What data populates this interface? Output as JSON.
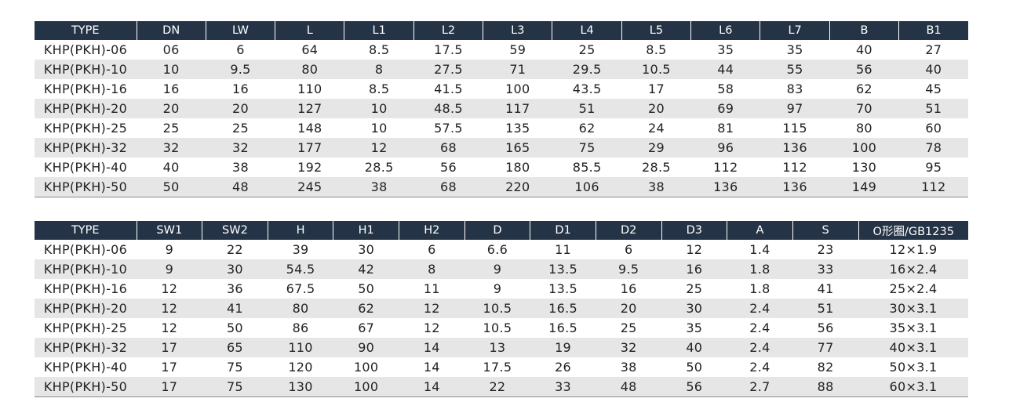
{
  "table1": {
    "headers": [
      "TYPE",
      "DN",
      "LW",
      "L",
      "L1",
      "L2",
      "L3",
      "L4",
      "L5",
      "L6",
      "L7",
      "B",
      "B1"
    ],
    "rows": [
      [
        "KHP(PKH)-06",
        "06",
        "6",
        "64",
        "8.5",
        "17.5",
        "59",
        "25",
        "8.5",
        "35",
        "35",
        "40",
        "27"
      ],
      [
        "KHP(PKH)-10",
        "10",
        "9.5",
        "80",
        "8",
        "27.5",
        "71",
        "29.5",
        "10.5",
        "44",
        "55",
        "56",
        "40"
      ],
      [
        "KHP(PKH)-16",
        "16",
        "16",
        "110",
        "8.5",
        "41.5",
        "100",
        "43.5",
        "17",
        "58",
        "83",
        "62",
        "45"
      ],
      [
        "KHP(PKH)-20",
        "20",
        "20",
        "127",
        "10",
        "48.5",
        "117",
        "51",
        "20",
        "69",
        "97",
        "70",
        "51"
      ],
      [
        "KHP(PKH)-25",
        "25",
        "25",
        "148",
        "10",
        "57.5",
        "135",
        "62",
        "24",
        "81",
        "115",
        "80",
        "60"
      ],
      [
        "KHP(PKH)-32",
        "32",
        "32",
        "177",
        "12",
        "68",
        "165",
        "75",
        "29",
        "96",
        "136",
        "100",
        "78"
      ],
      [
        "KHP(PKH)-40",
        "40",
        "38",
        "192",
        "28.5",
        "56",
        "180",
        "85.5",
        "28.5",
        "112",
        "112",
        "130",
        "95"
      ],
      [
        "KHP(PKH)-50",
        "50",
        "48",
        "245",
        "38",
        "68",
        "220",
        "106",
        "38",
        "136",
        "136",
        "149",
        "112"
      ]
    ]
  },
  "table2": {
    "headers": [
      "TYPE",
      "SW1",
      "SW2",
      "H",
      "H1",
      "H2",
      "D",
      "D1",
      "D2",
      "D3",
      "A",
      "S",
      "O形圈/GB1235"
    ],
    "rows": [
      [
        "KHP(PKH)-06",
        "9",
        "22",
        "39",
        "30",
        "6",
        "6.6",
        "11",
        "6",
        "12",
        "1.4",
        "23",
        "12×1.9"
      ],
      [
        "KHP(PKH)-10",
        "9",
        "30",
        "54.5",
        "42",
        "8",
        "9",
        "13.5",
        "9.5",
        "16",
        "1.8",
        "33",
        "16×2.4"
      ],
      [
        "KHP(PKH)-16",
        "12",
        "36",
        "67.5",
        "50",
        "11",
        "9",
        "13.5",
        "16",
        "25",
        "1.8",
        "41",
        "25×2.4"
      ],
      [
        "KHP(PKH)-20",
        "12",
        "41",
        "80",
        "62",
        "12",
        "10.5",
        "16.5",
        "20",
        "30",
        "2.4",
        "51",
        "30×3.1"
      ],
      [
        "KHP(PKH)-25",
        "12",
        "50",
        "86",
        "67",
        "12",
        "10.5",
        "16.5",
        "25",
        "35",
        "2.4",
        "56",
        "35×3.1"
      ],
      [
        "KHP(PKH)-32",
        "17",
        "65",
        "110",
        "90",
        "14",
        "13",
        "19",
        "32",
        "40",
        "2.4",
        "77",
        "40×3.1"
      ],
      [
        "KHP(PKH)-40",
        "17",
        "75",
        "120",
        "100",
        "14",
        "17.5",
        "26",
        "38",
        "50",
        "2.4",
        "82",
        "50×3.1"
      ],
      [
        "KHP(PKH)-50",
        "17",
        "75",
        "130",
        "100",
        "14",
        "22",
        "33",
        "48",
        "56",
        "2.7",
        "88",
        "60×3.1"
      ]
    ]
  },
  "colors": {
    "header_bg": "#243446",
    "header_text": "#ffffff",
    "stripe_bg": "#e6e6e6"
  }
}
